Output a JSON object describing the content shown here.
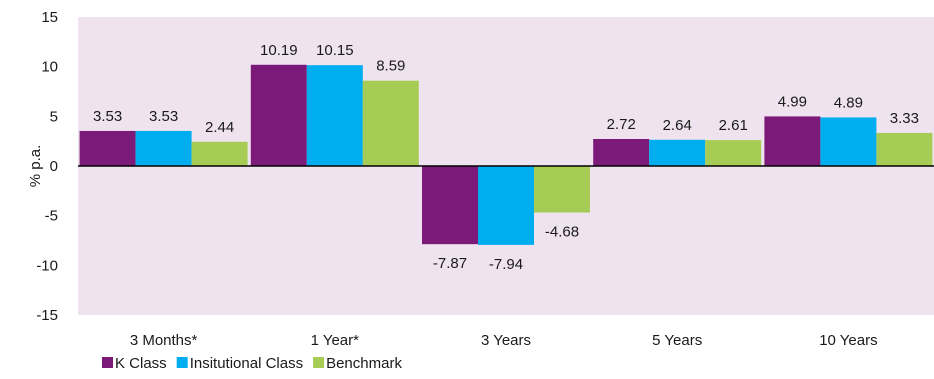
{
  "chart_data": {
    "type": "bar",
    "ylabel": "% p.a.",
    "ylim": [
      -15,
      15
    ],
    "yticks": [
      15,
      10,
      5,
      0,
      -5,
      -10,
      -15
    ],
    "categories": [
      "3 Months*",
      "1 Year*",
      "3 Years",
      "5 Years",
      "10 Years"
    ],
    "series": [
      {
        "name": "K Class",
        "values": [
          3.53,
          10.19,
          -7.87,
          2.72,
          4.99
        ],
        "color": "#7b1a78"
      },
      {
        "name": "Insitutional Class",
        "values": [
          3.53,
          10.15,
          -7.94,
          2.64,
          4.89
        ],
        "color": "#00aeef"
      },
      {
        "name": "Benchmark",
        "values": [
          2.44,
          8.59,
          -4.68,
          2.61,
          3.33
        ],
        "color": "#a6cc55"
      }
    ],
    "plot_background": "#efe3f0",
    "grid": false,
    "legend_position": "bottom-left"
  }
}
